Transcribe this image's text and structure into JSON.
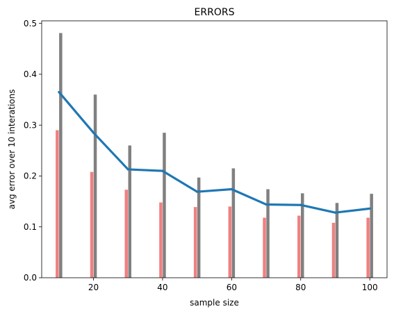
{
  "chart_data": {
    "type": "bar",
    "title": "ERRORS",
    "xlabel": "sample size",
    "ylabel": "avg error over 10 interations",
    "xlim": [
      5,
      105
    ],
    "ylim": [
      0,
      0.505
    ],
    "x_ticks": [
      20,
      40,
      60,
      80,
      100
    ],
    "x_tick_labels": [
      "20",
      "40",
      "60",
      "80",
      "100"
    ],
    "y_ticks": [
      0.0,
      0.1,
      0.2,
      0.3,
      0.4,
      0.5
    ],
    "y_tick_labels": [
      "0.0",
      "0.1",
      "0.2",
      "0.3",
      "0.4",
      "0.5"
    ],
    "grid": false,
    "colors": {
      "low_bar": "#f08080",
      "high_bar": "#808080",
      "line": "#1f77b4"
    },
    "x": [
      10,
      20,
      30,
      40,
      50,
      60,
      70,
      80,
      90,
      100
    ],
    "series": [
      {
        "kind": "bar",
        "color_key": "low_bar",
        "values": [
          0.29,
          0.208,
          0.173,
          0.148,
          0.139,
          0.14,
          0.118,
          0.122,
          0.108,
          0.118
        ]
      },
      {
        "kind": "bar",
        "color_key": "high_bar",
        "values": [
          0.481,
          0.36,
          0.26,
          0.285,
          0.197,
          0.215,
          0.174,
          0.166,
          0.147,
          0.165
        ]
      },
      {
        "kind": "line",
        "color_key": "line",
        "values": [
          0.365,
          0.285,
          0.213,
          0.21,
          0.169,
          0.174,
          0.144,
          0.143,
          0.128,
          0.136
        ]
      }
    ]
  }
}
